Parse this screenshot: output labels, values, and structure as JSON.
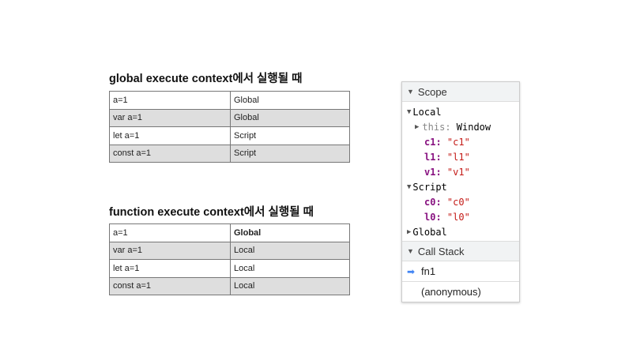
{
  "global_section": {
    "title": "global execute context에서 실행될 때",
    "rows": [
      [
        "a=1",
        "Global"
      ],
      [
        "var a=1",
        "Global"
      ],
      [
        "let a=1",
        "Script"
      ],
      [
        "const a=1",
        "Script"
      ]
    ]
  },
  "function_section": {
    "title": "function execute context에서 실행될 때",
    "rows": [
      [
        "a=1",
        "Global"
      ],
      [
        "var a=1",
        "Local"
      ],
      [
        "let a=1",
        "Local"
      ],
      [
        "const a=1",
        "Local"
      ]
    ]
  },
  "devtools": {
    "scope_label": "Scope",
    "local_label": "Local",
    "this_key": "this",
    "this_value": "Window",
    "local_vars": [
      {
        "k": "c1",
        "v": "\"c1\""
      },
      {
        "k": "l1",
        "v": "\"l1\""
      },
      {
        "k": "v1",
        "v": "\"v1\""
      }
    ],
    "script_label": "Script",
    "script_vars": [
      {
        "k": "c0",
        "v": "\"c0\""
      },
      {
        "k": "l0",
        "v": "\"l0\""
      }
    ],
    "global_label": "Global",
    "call_stack_label": "Call Stack",
    "frames": [
      "fn1",
      "(anonymous)"
    ],
    "accent": "#4285f4"
  }
}
